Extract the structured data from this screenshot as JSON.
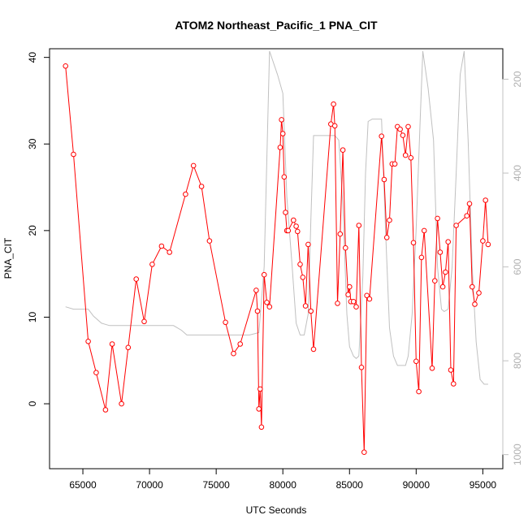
{
  "chart_data": {
    "type": "line",
    "title": "ATOM2 Northeast_Pacific_1 PNA_CIT",
    "xlabel": "UTC Seconds",
    "ylabel": "PNA_CIT",
    "xlim": [
      62500,
      96500
    ],
    "ylim": [
      -7.5,
      41
    ],
    "x_ticks": [
      65000,
      70000,
      75000,
      80000,
      85000,
      90000,
      95000
    ],
    "x_tick_labels": [
      "65000",
      "70000",
      "75000",
      "80000",
      "85000",
      "90000",
      "95000"
    ],
    "y_ticks": [
      0,
      10,
      20,
      30,
      40
    ],
    "y_tick_labels": [
      "0",
      "10",
      "20",
      "30",
      "40"
    ],
    "y2_ticks": [
      200,
      400,
      600,
      800,
      1000
    ],
    "y2_tick_labels": [
      "200",
      "400",
      "600",
      "800",
      "1000"
    ],
    "y2_lim": [
      1030,
      135
    ],
    "y2_reversed": true,
    "colors": {
      "pna": "#ff0000",
      "secondary": "#c0c0c0"
    },
    "series": [
      {
        "color": "#ff0000",
        "marker": "open-circle",
        "x": [
          63700,
          64300,
          65400,
          66000,
          66700,
          67200,
          67900,
          68400,
          69000,
          69600,
          70200,
          70900,
          71500,
          72700,
          73300,
          73900,
          74500,
          75700,
          76300,
          76800,
          78000,
          78100,
          78200,
          78300,
          78400,
          78600,
          78800,
          79000,
          79800,
          79900,
          80000,
          80100,
          80200,
          80300,
          80400,
          80800,
          81000,
          81100,
          81300,
          81500,
          81700,
          81900,
          82100,
          82300,
          83600,
          83800,
          83900,
          84100,
          84300,
          84500,
          84700,
          84900,
          85000,
          85100,
          85300,
          85500,
          85700,
          85900,
          86100,
          86300,
          86500,
          87400,
          87600,
          87800,
          88000,
          88200,
          88400,
          88600,
          88800,
          89000,
          89200,
          89400,
          89600,
          89800,
          90000,
          90200,
          90400,
          90600,
          91200,
          91400,
          91600,
          91800,
          92000,
          92200,
          92400,
          92600,
          92800,
          93000,
          93800,
          94000,
          94200,
          94400,
          94700,
          95000,
          95200,
          95400
        ],
        "y": [
          39,
          28.8,
          7.2,
          3.6,
          -0.7,
          6.9,
          0,
          6.5,
          14.4,
          9.5,
          16.1,
          18.2,
          17.5,
          24.2,
          27.5,
          25.1,
          18.8,
          9.4,
          5.8,
          6.9,
          13.1,
          10.7,
          -0.6,
          1.7,
          -2.7,
          14.9,
          11.7,
          11.2,
          29.6,
          32.8,
          31.2,
          26.2,
          22.1,
          20,
          20,
          21.2,
          20.5,
          19.9,
          16.1,
          14.6,
          11.3,
          18.4,
          10.7,
          6.3,
          32.3,
          34.6,
          32.1,
          11.6,
          19.6,
          29.3,
          18,
          12.6,
          13.5,
          11.8,
          11.8,
          11.2,
          20.6,
          4.2,
          -5.6,
          12.5,
          12.1,
          30.9,
          25.9,
          19.2,
          21.2,
          27.7,
          27.7,
          32,
          31.7,
          31,
          28.7,
          32,
          28.4,
          18.6,
          4.9,
          1.4,
          16.9,
          20,
          4.1,
          14.2,
          21.4,
          17.5,
          13.5,
          15.2,
          18.7,
          3.9,
          2.3,
          20.6,
          21.7,
          23.1,
          13.5,
          11.5,
          12.8,
          18.8,
          23.5,
          18.4
        ]
      },
      {
        "color": "#c0c0c0",
        "axis": "right",
        "x": [
          63700,
          64300,
          65400,
          65800,
          66400,
          67000,
          67900,
          68500,
          69000,
          70000,
          71000,
          71800,
          72400,
          72800,
          73500,
          74500,
          75500,
          76500,
          77500,
          78200,
          78600,
          79000,
          79600,
          80000,
          80300,
          80700,
          81000,
          81300,
          81600,
          81900,
          82100,
          82300,
          83000,
          83600,
          83900,
          84200,
          84500,
          84800,
          85000,
          85300,
          85500,
          85700,
          86000,
          86200,
          86400,
          86700,
          87100,
          87400,
          87700,
          88000,
          88300,
          88600,
          88900,
          89200,
          89400,
          89700,
          90000,
          90300,
          90500,
          90900,
          91300,
          91600,
          91900,
          92100,
          92400,
          92700,
          93000,
          93300,
          93600,
          93900,
          94200,
          94500,
          94800,
          95100,
          95400
        ],
        "y": [
          685,
          690,
          690,
          705,
          720,
          725,
          725,
          725,
          725,
          725,
          725,
          725,
          735,
          745,
          745,
          745,
          745,
          745,
          745,
          740,
          600,
          140,
          190,
          230,
          450,
          600,
          720,
          745,
          745,
          700,
          500,
          320,
          320,
          320,
          320,
          330,
          470,
          700,
          770,
          790,
          795,
          790,
          620,
          400,
          290,
          285,
          285,
          285,
          520,
          730,
          790,
          810,
          810,
          810,
          790,
          700,
          520,
          290,
          140,
          220,
          330,
          600,
          690,
          695,
          690,
          600,
          400,
          190,
          140,
          330,
          600,
          760,
          840,
          850,
          850
        ]
      }
    ]
  }
}
